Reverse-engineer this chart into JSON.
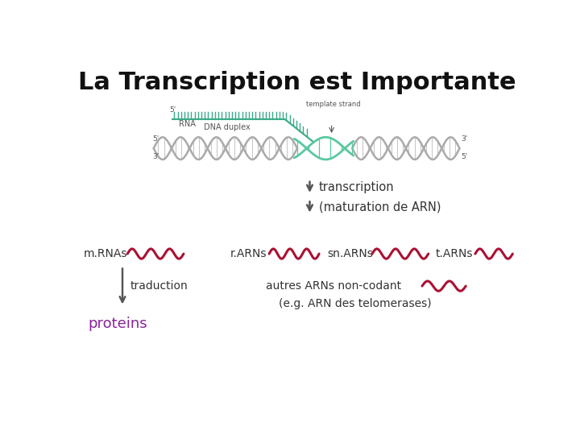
{
  "title": "La Transcription est Importante",
  "title_fontsize": 22,
  "title_fontweight": "bold",
  "bg_color": "#ffffff",
  "arrow_color": "#555555",
  "wavy_color_red": "#aa1133",
  "wavy_color_teal": "#3aaa88",
  "text_color_black": "#333333",
  "text_color_purple": "#882299",
  "labels": {
    "transcription": "transcription",
    "maturation": "(maturation de ARN)",
    "mRNAs": "m.RNAs",
    "rARNs": "r.ARNs",
    "snARNs": "sn.ARNs",
    "tARNs": "t.ARNs",
    "traduction": "traduction",
    "proteins": "proteins",
    "autres": "autres ARNs non-codant",
    "eg": "(e.g. ARN des telomerases)",
    "dna_duplex": "DNA duplex",
    "rna": "RNA",
    "template_strand": "template strand",
    "five_prime_top": "5'",
    "three_prime_top": "3'",
    "three_prime_bottom": "3'",
    "five_prime_bottom": "5'",
    "five_prime_rna": "5'"
  }
}
